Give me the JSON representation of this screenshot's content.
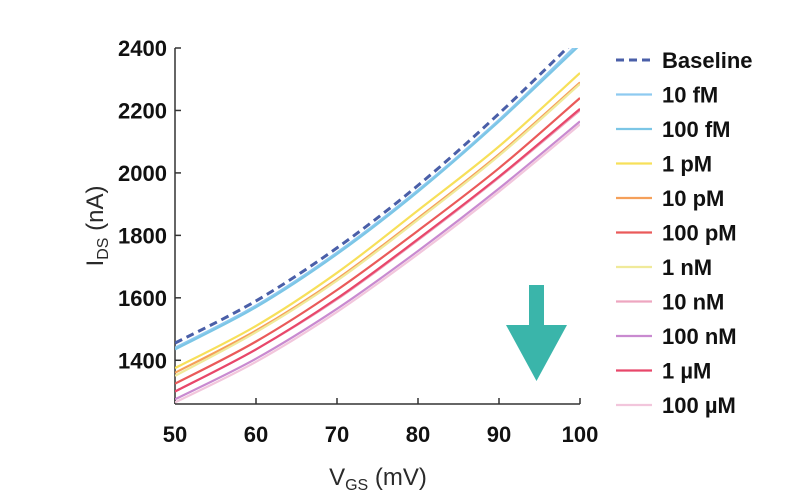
{
  "chart_data": {
    "type": "line",
    "xlabel": {
      "main": "V",
      "sub": "GS",
      "unit": " (mV)"
    },
    "ylabel": {
      "main": "I",
      "sub": "DS",
      "unit": " (nA)"
    },
    "xlim": [
      50,
      100
    ],
    "ylim": [
      1260,
      2400
    ],
    "xticks": [
      "50",
      "60",
      "70",
      "80",
      "90",
      "100"
    ],
    "yticks": [
      "1400",
      "1600",
      "1800",
      "2000",
      "2200",
      "2400"
    ],
    "x": [
      50,
      60,
      70,
      80,
      90,
      100
    ],
    "legend_position": "right",
    "grid": false,
    "annotation": {
      "type": "arrow-down",
      "color": "#3ab5aa"
    },
    "series": [
      {
        "name": "Baseline",
        "color": "#4a5fa8",
        "dashed": true,
        "values": [
          1455,
          1590,
          1760,
          1960,
          2190,
          2440
        ]
      },
      {
        "name": "10 fM",
        "color": "#8ecaf0",
        "dashed": false,
        "values": [
          1440,
          1575,
          1745,
          1945,
          2170,
          2420
        ]
      },
      {
        "name": "100 fM",
        "color": "#7cc6e6",
        "dashed": false,
        "values": [
          1435,
          1570,
          1740,
          1940,
          2165,
          2410
        ]
      },
      {
        "name": "1 pM",
        "color": "#f7e05a",
        "dashed": false,
        "values": [
          1375,
          1510,
          1680,
          1880,
          2085,
          2320
        ]
      },
      {
        "name": "10 pM",
        "color": "#f5a05a",
        "dashed": false,
        "values": [
          1360,
          1495,
          1660,
          1855,
          2060,
          2290
        ]
      },
      {
        "name": "100 pM",
        "color": "#ea5a5a",
        "dashed": false,
        "values": [
          1325,
          1460,
          1625,
          1815,
          2015,
          2240
        ]
      },
      {
        "name": "1 nM",
        "color": "#f0ea9a",
        "dashed": false,
        "values": [
          1350,
          1490,
          1655,
          1850,
          2055,
          2285
        ]
      },
      {
        "name": "10 nM",
        "color": "#eea6c0",
        "dashed": false,
        "values": [
          1300,
          1435,
          1595,
          1785,
          1985,
          2200
        ]
      },
      {
        "name": "100 nM",
        "color": "#c98ad0",
        "dashed": false,
        "values": [
          1275,
          1405,
          1565,
          1750,
          1950,
          2165
        ]
      },
      {
        "name": "1 µM",
        "color": "#e8476a",
        "dashed": false,
        "values": [
          1300,
          1435,
          1598,
          1788,
          1988,
          2205
        ]
      },
      {
        "name": "100 µM",
        "color": "#f2c6dc",
        "dashed": false,
        "values": [
          1265,
          1395,
          1555,
          1740,
          1940,
          2155
        ]
      }
    ]
  }
}
